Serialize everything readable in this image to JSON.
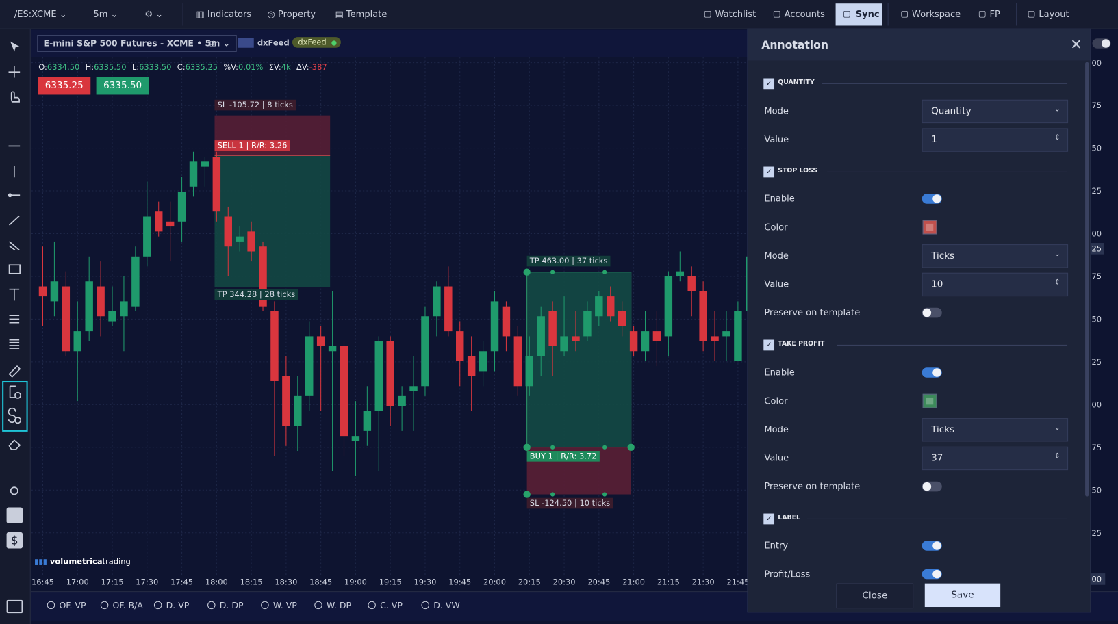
{
  "topbar": {
    "left": [
      "/ES:XCME",
      "5m"
    ],
    "menu": [
      "Indicators",
      "Property",
      "Template"
    ],
    "right": [
      "Watchlist",
      "Accounts",
      "Sync",
      "Workspace",
      "FP",
      "Layout"
    ],
    "active": "Sync"
  },
  "chart": {
    "instrument": "E-mini S&P 500 Futures - XCME • 5m",
    "feed_logo": "dxFeed",
    "feed_badge": "dxFeed",
    "ohlc": [
      {
        "label": "O:",
        "value": "6334.50"
      },
      {
        "label": "H:",
        "value": "6335.50"
      },
      {
        "label": "L:",
        "value": "6333.50"
      },
      {
        "label": "C:",
        "value": "6335.25"
      },
      {
        "label": "%V:",
        "value": "0.01%"
      },
      {
        "label": "ΣV:",
        "value": "4k"
      },
      {
        "label": "ΔV:",
        "value": "-387",
        "negative": true
      }
    ],
    "bid": "6335.25",
    "ask": "6335.50",
    "ylim": [
      6320,
      6346
    ],
    "up_color": "#1f9a6c",
    "down_color": "#d9363e",
    "candles": [
      [
        6334.5,
        6336.5,
        6332.5,
        6334
      ],
      [
        6333.75,
        6336.75,
        6333,
        6334.75
      ],
      [
        6334.5,
        6335.25,
        6331,
        6331.25
      ],
      [
        6331.25,
        6333.75,
        6328.75,
        6332.25
      ],
      [
        6332.25,
        6336,
        6331.75,
        6334.75
      ],
      [
        6334.5,
        6335.75,
        6332,
        6333
      ],
      [
        6332.75,
        6334.5,
        6332.5,
        6333.25
      ],
      [
        6333,
        6335,
        6331.25,
        6333.75
      ],
      [
        6333.5,
        6336.5,
        6333.25,
        6336
      ],
      [
        6336,
        6339.75,
        6335.5,
        6338
      ],
      [
        6338.25,
        6338.75,
        6337,
        6337.25
      ],
      [
        6337.75,
        6338.75,
        6335.75,
        6337.5
      ],
      [
        6337.75,
        6340,
        6336.75,
        6339.25
      ],
      [
        6339.5,
        6341.25,
        6339,
        6340.75
      ],
      [
        6340.5,
        6341,
        6339.5,
        6340.75
      ],
      [
        6341,
        6341.25,
        6337.75,
        6338.25
      ],
      [
        6338,
        6338.5,
        6335,
        6336.5
      ],
      [
        6336.75,
        6337.5,
        6336.25,
        6337
      ],
      [
        6337.25,
        6337.75,
        6335.75,
        6336.25
      ],
      [
        6336.5,
        6336.75,
        6333.25,
        6333.5
      ],
      [
        6333.25,
        6333.75,
        6326,
        6329.75
      ],
      [
        6330,
        6331,
        6326.5,
        6327.5
      ],
      [
        6327.5,
        6330,
        6326.25,
        6329
      ],
      [
        6329,
        6332.75,
        6328.25,
        6332
      ],
      [
        6332,
        6332.5,
        6328.25,
        6331.5
      ],
      [
        6331.25,
        6334.25,
        6325.25,
        6331.5
      ],
      [
        6331.5,
        6331.75,
        6326,
        6327
      ],
      [
        6326.75,
        6328.75,
        6325,
        6327
      ],
      [
        6327.25,
        6329.5,
        6326.5,
        6328.25
      ],
      [
        6328.25,
        6332,
        6325.25,
        6331.75
      ],
      [
        6331.75,
        6332,
        6327.5,
        6328.5
      ],
      [
        6328.5,
        6329.5,
        6327.25,
        6329
      ],
      [
        6329.25,
        6331,
        6327.25,
        6329.5
      ],
      [
        6329.5,
        6333.5,
        6329,
        6333
      ],
      [
        6333,
        6334.75,
        6332,
        6334.5
      ],
      [
        6334.5,
        6335.5,
        6332,
        6332.25
      ],
      [
        6332.25,
        6332.75,
        6329.5,
        6330.75
      ],
      [
        6331,
        6332,
        6328.25,
        6330
      ],
      [
        6330.25,
        6331.75,
        6329.5,
        6331.25
      ],
      [
        6331.25,
        6334.25,
        6330.25,
        6333.75
      ],
      [
        6333.5,
        6333.75,
        6331.25,
        6332
      ],
      [
        6332,
        6332.5,
        6329,
        6329.5
      ],
      [
        6329.5,
        6332,
        6329,
        6331
      ],
      [
        6331,
        6333.5,
        6330,
        6333
      ],
      [
        6333.25,
        6333.75,
        6330,
        6331.5
      ],
      [
        6331.25,
        6334,
        6331,
        6332
      ],
      [
        6332,
        6333.25,
        6331.25,
        6331.75
      ],
      [
        6332,
        6333.75,
        6331.75,
        6333.25
      ],
      [
        6333,
        6334.25,
        6332.5,
        6334
      ],
      [
        6334,
        6334.5,
        6332.75,
        6333
      ],
      [
        6333.25,
        6333.75,
        6332,
        6332.5
      ],
      [
        6332.25,
        6332.5,
        6331,
        6331.25
      ],
      [
        6331.25,
        6333.25,
        6330.75,
        6332.25
      ],
      [
        6332.25,
        6333.25,
        6330.5,
        6331.75
      ],
      [
        6332,
        6335.25,
        6331,
        6335
      ],
      [
        6335,
        6336.25,
        6334.75,
        6335.25
      ],
      [
        6335,
        6335.5,
        6333,
        6334.25
      ],
      [
        6334.25,
        6334.75,
        6331.25,
        6331.75
      ],
      [
        6332,
        6333.25,
        6330.75,
        6331.75
      ],
      [
        6332,
        6333.25,
        6330.75,
        6332.25
      ],
      [
        6330.75,
        6333.75,
        6330.75,
        6333.25
      ],
      [
        6333.25,
        6336.5,
        6333,
        6336
      ]
    ],
    "time_labels": [
      "16:45",
      "17:00",
      "17:15",
      "17:30",
      "17:45",
      "18:00",
      "18:15",
      "18:30",
      "18:45",
      "19:00",
      "19:15",
      "19:30",
      "19:45",
      "20:00",
      "20:15",
      "20:30",
      "20:45",
      "21:00",
      "21:15",
      "21:30",
      "21:45"
    ],
    "price_labels": [
      "00",
      "75",
      "50",
      "25",
      "00",
      "75",
      "50",
      "25",
      "00",
      "75",
      "50",
      "25"
    ],
    "last_price_tag": "25",
    "time_corner_tag": "00",
    "annotations": {
      "sell_sl": "SL -105.72 | 8 ticks",
      "sell_entry": "SELL 1 | R/R: 3.26",
      "sell_tp": "TP 344.28 | 28 ticks",
      "buy_tp": "TP 463.00 | 37 ticks",
      "buy_entry": "BUY 1 | R/R: 3.72",
      "buy_sl": "SL -124.50 | 10 ticks"
    },
    "logo": {
      "brand": "volumetrica",
      "suffix": "trading"
    }
  },
  "bottom_tabs": [
    "OF. VP",
    "OF. B/A",
    "D. VP",
    "D. DP",
    "W. VP",
    "W. DP",
    "C. VP",
    "D. VW"
  ],
  "panel": {
    "title": "Annotation",
    "sections": [
      {
        "title": "QUANTITY",
        "checked": true,
        "rows": [
          {
            "label": "Mode",
            "control": "select",
            "value": "Quantity"
          },
          {
            "label": "Value",
            "control": "spin",
            "value": 1
          }
        ]
      },
      {
        "title": "STOP LOSS",
        "checked": true,
        "rows": [
          {
            "label": "Enable",
            "control": "toggle",
            "on": true
          },
          {
            "label": "Color",
            "control": "color",
            "color": "#c0504d"
          },
          {
            "label": "Mode",
            "control": "select",
            "value": "Ticks"
          },
          {
            "label": "Value",
            "control": "spin",
            "value": 10
          },
          {
            "label": "Preserve on template",
            "control": "toggle",
            "on": false
          }
        ]
      },
      {
        "title": "TAKE PROFIT",
        "checked": true,
        "rows": [
          {
            "label": "Enable",
            "control": "toggle",
            "on": true
          },
          {
            "label": "Color",
            "control": "color",
            "color": "#3c8a5a"
          },
          {
            "label": "Mode",
            "control": "select",
            "value": "Ticks"
          },
          {
            "label": "Value",
            "control": "spin",
            "value": 37
          },
          {
            "label": "Preserve on template",
            "control": "toggle",
            "on": false
          }
        ]
      },
      {
        "title": "LABEL",
        "checked": true,
        "rows": [
          {
            "label": "Entry",
            "control": "toggle",
            "on": true
          },
          {
            "label": "Profit/Loss",
            "control": "toggle",
            "on": true
          }
        ]
      }
    ],
    "buttons": [
      "Close",
      "Save"
    ]
  }
}
